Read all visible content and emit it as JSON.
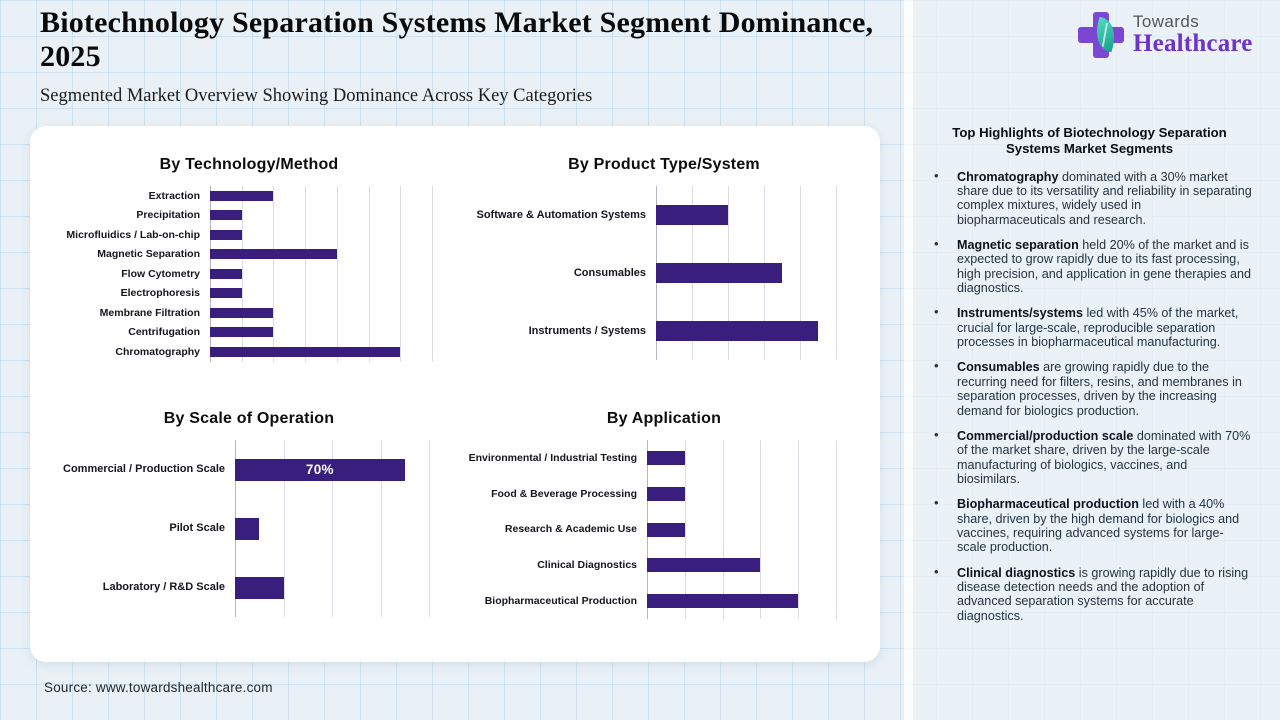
{
  "page": {
    "title": "Biotechnology Separation Systems Market Segment Dominance, 2025",
    "subtitle": "Segmented Market Overview Showing Dominance Across Key Categories",
    "source": "Source: www.towardshealthcare.com"
  },
  "logo": {
    "brand_top": "Towards",
    "brand_bottom": "Healthcare"
  },
  "colors": {
    "bar_purple": "#3a1e7e",
    "logo_purple": "#7c45d2",
    "logo_teal": "#2fc0a6",
    "background_blue": "#e9f1f7",
    "card_white": "#ffffff"
  },
  "chart_data": [
    {
      "type": "bar",
      "orientation": "horizontal",
      "title": "By Technology/Method",
      "categories": [
        "Extraction",
        "Precipitation",
        "Microfluidics / Lab-on-chip",
        "Magnetic Separation",
        "Flow Cytometry",
        "Electrophoresis",
        "Membrane Filtration",
        "Centrifugation",
        "Chromatography"
      ],
      "values": [
        10,
        5,
        5,
        20,
        5,
        5,
        10,
        10,
        30
      ],
      "unit": "%",
      "xlim": [
        0,
        35
      ],
      "grid_step": 5,
      "grid": true,
      "bar_labels": []
    },
    {
      "type": "bar",
      "orientation": "horizontal",
      "title": "By Product Type/System",
      "categories": [
        "Software & Automation Systems",
        "Consumables",
        "Instruments / Systems"
      ],
      "values": [
        20,
        35,
        45
      ],
      "unit": "%",
      "xlim": [
        0,
        50
      ],
      "grid_step": 10,
      "grid": true,
      "bar_labels": []
    },
    {
      "type": "bar",
      "orientation": "horizontal",
      "title": "By Scale of Operation",
      "categories": [
        "Commercial / Production Scale",
        "Pilot Scale",
        "Laboratory / R&D Scale"
      ],
      "values": [
        70,
        10,
        20
      ],
      "unit": "%",
      "xlim": [
        0,
        80
      ],
      "grid_step": 20,
      "grid": true,
      "bar_labels": [
        "70%",
        "",
        ""
      ]
    },
    {
      "type": "bar",
      "orientation": "horizontal",
      "title": "By Application",
      "categories": [
        "Environmental / Industrial Testing",
        "Food & Beverage Processing",
        "Research & Academic Use",
        "Clinical Diagnostics",
        "Biopharmaceutical Production"
      ],
      "values": [
        10,
        10,
        10,
        30,
        40
      ],
      "unit": "%",
      "xlim": [
        0,
        50
      ],
      "grid_step": 10,
      "grid": true,
      "bar_labels": []
    }
  ],
  "sidebar": {
    "heading": "Top Highlights of Biotechnology Separation Systems Market Segments",
    "bullets": [
      {
        "lead": "Chromatography",
        "text": " dominated with a 30% market share due to its versatility and reliability in separating complex mixtures, widely used in biopharmaceuticals and research."
      },
      {
        "lead": "Magnetic separation",
        "text": " held 20% of the market and is expected to grow rapidly due to its fast processing, high precision, and application in gene therapies and diagnostics."
      },
      {
        "lead": "Instruments/systems",
        "text": " led with 45% of the market, crucial for large-scale, reproducible separation processes in biopharmaceutical manufacturing."
      },
      {
        "lead": "Consumables",
        "text": " are growing rapidly due to the recurring need for filters, resins, and membranes in separation processes, driven by the increasing demand for biologics production."
      },
      {
        "lead": "Commercial/production scale",
        "text": " dominated with 70% of the market share, driven by the large-scale manufacturing of biologics, vaccines, and biosimilars."
      },
      {
        "lead": "Biopharmaceutical production",
        "text": " led with a 40% share, driven by the high demand for biologics and vaccines, requiring advanced systems for large-scale production."
      },
      {
        "lead": "Clinical diagnostics",
        "text": " is growing rapidly due to rising disease detection needs and the adoption of advanced separation systems for accurate diagnostics."
      }
    ]
  }
}
